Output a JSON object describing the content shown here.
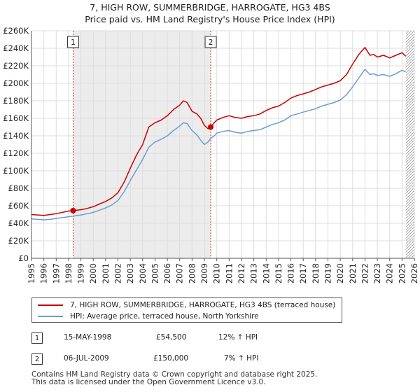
{
  "title_line1": "7, HIGH ROW, SUMMERBRIDGE, HARROGATE, HG3 4BS",
  "title_line2": "Price paid vs. HM Land Registry's House Price Index (HPI)",
  "colors": {
    "red": "#cc0000",
    "blue": "#6f9bd1",
    "grid": "#dddddd",
    "shade": "#ececec"
  },
  "chart_data": {
    "type": "line",
    "title": "7, HIGH ROW, SUMMERBRIDGE, HARROGATE, HG3 4BS",
    "xlim": [
      1995,
      2026
    ],
    "ylim": [
      0,
      260000
    ],
    "xticks": [
      1995,
      1996,
      1997,
      1998,
      1999,
      2000,
      2001,
      2002,
      2003,
      2004,
      2005,
      2006,
      2007,
      2008,
      2009,
      2010,
      2011,
      2012,
      2013,
      2014,
      2015,
      2016,
      2017,
      2018,
      2019,
      2020,
      2021,
      2022,
      2023,
      2024,
      2025,
      2026
    ],
    "yticks": [
      0,
      20000,
      40000,
      60000,
      80000,
      100000,
      120000,
      140000,
      160000,
      180000,
      200000,
      220000,
      240000,
      260000
    ],
    "ytick_labels": [
      "£0",
      "£20K",
      "£40K",
      "£60K",
      "£80K",
      "£100K",
      "£120K",
      "£140K",
      "£160K",
      "£180K",
      "£200K",
      "£220K",
      "£240K",
      "£260K"
    ],
    "hatch_from": 2025.3,
    "series": [
      {
        "name": "7, HIGH ROW, SUMMERBRIDGE, HARROGATE, HG3 4BS (terraced house)",
        "color": "#cc0000",
        "x": [
          1995,
          1995.5,
          1996,
          1996.5,
          1997,
          1997.5,
          1998,
          1998.37,
          1999,
          1999.5,
          2000,
          2000.5,
          2001,
          2001.5,
          2002,
          2002.5,
          2003,
          2003.5,
          2004,
          2004.5,
          2005,
          2005.5,
          2006,
          2006.5,
          2007,
          2007.3,
          2007.6,
          2008,
          2008.4,
          2008.7,
          2009,
          2009.3,
          2009.51,
          2009.8,
          2010,
          2010.5,
          2011,
          2011.5,
          2012,
          2012.5,
          2013,
          2013.5,
          2014,
          2014.5,
          2015,
          2015.5,
          2016,
          2016.5,
          2017,
          2017.5,
          2018,
          2018.5,
          2019,
          2019.5,
          2020,
          2020.5,
          2021,
          2021.5,
          2022,
          2022.4,
          2022.7,
          2023,
          2023.5,
          2024,
          2024.5,
          2025,
          2025.3
        ],
        "values": [
          50000,
          49500,
          49000,
          50000,
          51000,
          52500,
          54000,
          54500,
          55500,
          57000,
          59000,
          62000,
          65000,
          69000,
          75000,
          87000,
          103000,
          118000,
          130000,
          150000,
          155000,
          158000,
          163000,
          170000,
          175000,
          180000,
          178000,
          168000,
          165000,
          160000,
          152000,
          148000,
          150000,
          155000,
          158000,
          161000,
          163000,
          161000,
          160000,
          162000,
          163000,
          165000,
          169000,
          172000,
          174000,
          178000,
          183000,
          186000,
          188000,
          190000,
          193000,
          196000,
          198000,
          200000,
          203000,
          210000,
          222000,
          233000,
          241000,
          232000,
          233000,
          230000,
          232000,
          229000,
          232000,
          235000,
          231000
        ]
      },
      {
        "name": "HPI: Average price, terraced house, North Yorkshire",
        "color": "#6f9bd1",
        "x": [
          1995,
          1995.5,
          1996,
          1996.5,
          1997,
          1997.5,
          1998,
          1998.5,
          1999,
          1999.5,
          2000,
          2000.5,
          2001,
          2001.5,
          2002,
          2002.5,
          2003,
          2003.5,
          2004,
          2004.5,
          2005,
          2005.5,
          2006,
          2006.5,
          2007,
          2007.3,
          2007.6,
          2008,
          2008.4,
          2008.7,
          2009,
          2009.3,
          2009.5,
          2009.8,
          2010,
          2010.5,
          2011,
          2011.5,
          2012,
          2012.5,
          2013,
          2013.5,
          2014,
          2014.5,
          2015,
          2015.5,
          2016,
          2016.5,
          2017,
          2017.5,
          2018,
          2018.5,
          2019,
          2019.5,
          2020,
          2020.5,
          2021,
          2021.5,
          2022,
          2022.4,
          2022.7,
          2023,
          2023.5,
          2024,
          2024.5,
          2025,
          2025.3
        ],
        "values": [
          45000,
          44500,
          44000,
          44500,
          45500,
          46500,
          47500,
          48500,
          49500,
          51000,
          52500,
          55000,
          57500,
          61000,
          66000,
          76000,
          89000,
          101000,
          113000,
          127000,
          133000,
          136000,
          140000,
          146000,
          151000,
          155000,
          154000,
          146000,
          141000,
          135000,
          130000,
          133000,
          137000,
          140000,
          143000,
          145000,
          146000,
          144000,
          143000,
          145000,
          146000,
          147000,
          150000,
          153000,
          155000,
          158000,
          163000,
          165000,
          167000,
          169000,
          171000,
          174000,
          176000,
          178000,
          181000,
          187000,
          196000,
          206000,
          216000,
          210000,
          211000,
          209000,
          210000,
          208000,
          211000,
          215000,
          213000
        ]
      }
    ],
    "markers": [
      {
        "label": "1",
        "x": 1998.37,
        "value": 54500
      },
      {
        "label": "2",
        "x": 2009.51,
        "value": 150000
      }
    ]
  },
  "legend": {
    "red_label": "7, HIGH ROW, SUMMERBRIDGE, HARROGATE, HG3 4BS (terraced house)",
    "blue_label": "HPI: Average price, terraced house, North Yorkshire"
  },
  "transactions": [
    {
      "num": "1",
      "date": "15-MAY-1998",
      "price": "£54,500",
      "hpi": "12% ↑ HPI"
    },
    {
      "num": "2",
      "date": "06-JUL-2009",
      "price": "£150,000",
      "hpi": "7% ↑ HPI"
    }
  ],
  "footer_line1": "Contains HM Land Registry data © Crown copyright and database right 2025.",
  "footer_line2": "This data is licensed under the Open Government Licence v3.0."
}
